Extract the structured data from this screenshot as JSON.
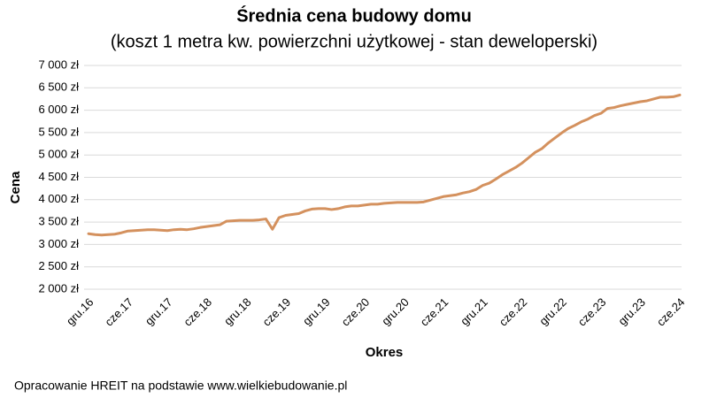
{
  "chart_data": {
    "type": "line",
    "title": "Średnia cena budowy domu",
    "subtitle": "(koszt 1 metra kw. powierzchni użytkowej - stan deweloperski)",
    "x_label": "Okres",
    "y_label": "Cena",
    "source": "Opracowanie HREIT na podstawie www.wielkiebudowanie.pl",
    "categories": [
      "gru.16",
      null,
      null,
      null,
      null,
      null,
      "cze.17",
      null,
      null,
      null,
      null,
      null,
      "gru.17",
      null,
      null,
      null,
      null,
      null,
      "cze.18",
      null,
      null,
      null,
      null,
      null,
      "gru.18",
      null,
      null,
      null,
      null,
      null,
      "cze.19",
      null,
      null,
      null,
      null,
      null,
      "gru.19",
      null,
      null,
      null,
      null,
      null,
      "cze.20",
      null,
      null,
      null,
      null,
      null,
      "gru.20",
      null,
      null,
      null,
      null,
      null,
      "cze.21",
      null,
      null,
      null,
      null,
      null,
      "gru.21",
      null,
      null,
      null,
      null,
      null,
      "cze.22",
      null,
      null,
      null,
      null,
      null,
      "gru.22",
      null,
      null,
      null,
      null,
      null,
      "cze.23",
      null,
      null,
      null,
      null,
      null,
      "gru.23",
      null,
      null,
      null,
      null,
      null,
      "cze.24"
    ],
    "series": [
      {
        "name": "Cena",
        "color": "#d4915e",
        "values": [
          3240,
          3220,
          3210,
          3220,
          3230,
          3260,
          3300,
          3310,
          3320,
          3330,
          3330,
          3320,
          3310,
          3330,
          3340,
          3330,
          3350,
          3380,
          3400,
          3420,
          3440,
          3520,
          3530,
          3540,
          3540,
          3540,
          3550,
          3570,
          3340,
          3600,
          3650,
          3670,
          3690,
          3750,
          3790,
          3800,
          3800,
          3780,
          3800,
          3840,
          3860,
          3860,
          3880,
          3900,
          3900,
          3920,
          3930,
          3940,
          3940,
          3940,
          3940,
          3950,
          3990,
          4030,
          4070,
          4090,
          4110,
          4150,
          4180,
          4230,
          4320,
          4370,
          4460,
          4560,
          4640,
          4720,
          4820,
          4940,
          5060,
          5140,
          5270,
          5380,
          5490,
          5590,
          5660,
          5740,
          5800,
          5880,
          5930,
          6040,
          6060,
          6100,
          6130,
          6160,
          6190,
          6210,
          6250,
          6290,
          6290,
          6300,
          6340
        ]
      }
    ],
    "ylim": [
      2000,
      7000
    ],
    "yticks": [
      {
        "value": 2000,
        "label": "2 000 zł"
      },
      {
        "value": 2500,
        "label": "2 500 zł"
      },
      {
        "value": 3000,
        "label": "3 000 zł"
      },
      {
        "value": 3500,
        "label": "3 500 zł"
      },
      {
        "value": 4000,
        "label": "4 000 zł"
      },
      {
        "value": 4500,
        "label": "4 500 zł"
      },
      {
        "value": 5000,
        "label": "5 000 zł"
      },
      {
        "value": 5500,
        "label": "5 500 zł"
      },
      {
        "value": 6000,
        "label": "6 000 zł"
      },
      {
        "value": 6500,
        "label": "6 500 zł"
      },
      {
        "value": 7000,
        "label": "7 000 zł"
      }
    ],
    "grid": true
  }
}
